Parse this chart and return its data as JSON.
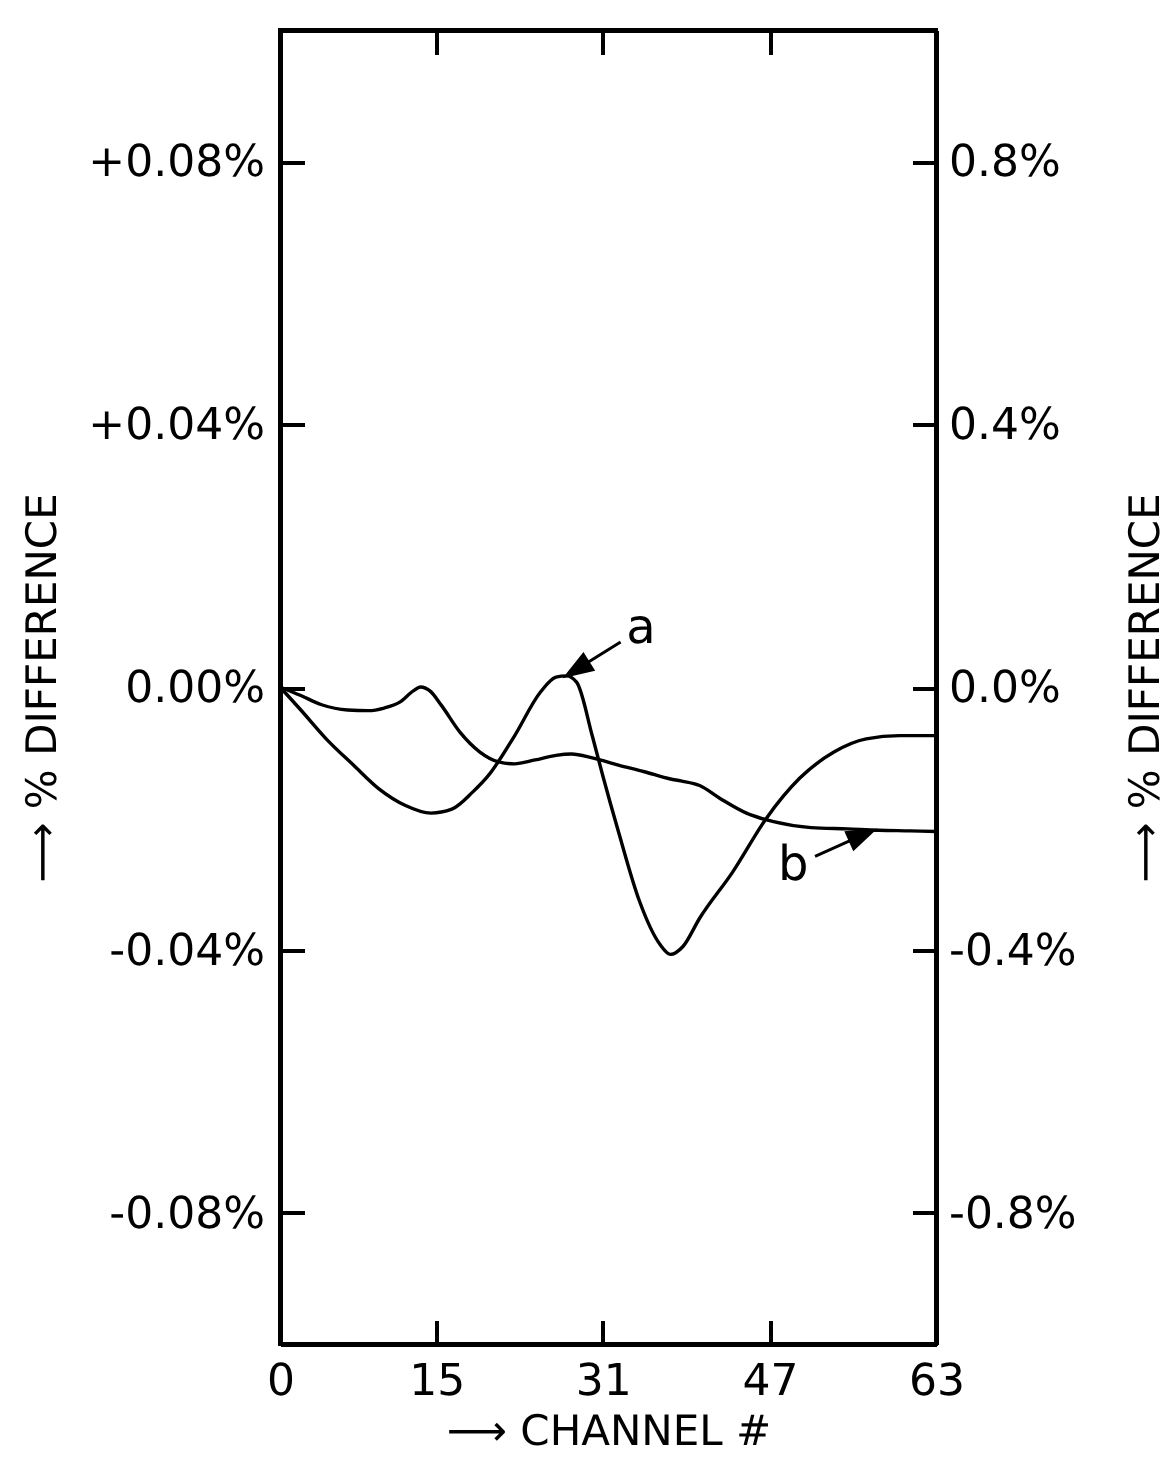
{
  "chart_data": {
    "type": "line",
    "xlabel": "⟶ CHANNEL #",
    "ylabel": "⟶ % DIFFERENCE",
    "y2label": "⟶ % DIFFERENCE",
    "xlim": [
      0,
      63
    ],
    "xticks": [
      0,
      15,
      31,
      47,
      63
    ],
    "ylim": [
      -0.1,
      0.1
    ],
    "yticks": [
      {
        "value": 0.08,
        "label": "+0.08%"
      },
      {
        "value": 0.04,
        "label": "+0.04%"
      },
      {
        "value": 0,
        "label": "0.00%"
      },
      {
        "value": -0.04,
        "label": "-0.04%"
      },
      {
        "value": -0.08,
        "label": "-0.08%"
      }
    ],
    "y2lim": [
      -1,
      1
    ],
    "y2ticks": [
      {
        "value": 0.8,
        "label": "0.8%"
      },
      {
        "value": 0.4,
        "label": "0.4%"
      },
      {
        "value": 0,
        "label": "0.0%"
      },
      {
        "value": -0.4,
        "label": "-0.4%"
      },
      {
        "value": -0.8,
        "label": "-0.8%"
      }
    ],
    "series": [
      {
        "color": "#000000",
        "x": [
          0,
          2,
          4.5,
          7,
          9.5,
          12,
          14.5,
          16.5,
          18.5,
          20,
          22.5,
          25,
          26.5,
          27.5,
          28.5,
          30,
          31,
          32.5,
          34.5,
          36.5,
          37.5,
          38.7,
          40.3,
          43.5,
          46.7,
          49.9,
          53.2,
          56.3,
          59.5,
          63
        ],
        "values": [
          0,
          -0.0035,
          -0.008,
          -0.0118,
          -0.0155,
          -0.018,
          -0.0192,
          -0.0186,
          -0.016,
          -0.0135,
          -0.0075,
          -0.0008,
          0.0015,
          0.0017,
          0.0007,
          -0.0075,
          -0.0135,
          -0.022,
          -0.0325,
          -0.0392,
          -0.0407,
          -0.0395,
          -0.0352,
          -0.0281,
          -0.02,
          -0.0139,
          -0.0099,
          -0.0079,
          -0.0074,
          -0.0074
        ]
      },
      {
        "color": "#000000",
        "x": [
          0,
          2,
          4,
          6.5,
          8.5,
          10,
          11.5,
          12.8,
          13.5,
          14.4,
          15.5,
          17.3,
          19.2,
          21,
          22.5,
          24.5,
          26.5,
          28,
          30,
          32.5,
          35,
          37.5,
          38.5,
          40.3,
          42.3,
          44.8,
          47.4,
          51,
          54.5,
          57.5,
          60.5,
          63
        ],
        "values": [
          0,
          -0.0013,
          -0.0027,
          -0.0035,
          -0.0036,
          -0.0032,
          -0.0023,
          -0.0006,
          0,
          -0.0006,
          -0.0028,
          -0.0069,
          -0.0099,
          -0.0114,
          -0.0117,
          -0.0111,
          -0.0104,
          -0.0102,
          -0.0108,
          -0.0119,
          -0.0129,
          -0.014,
          -0.0143,
          -0.015,
          -0.017,
          -0.0192,
          -0.0205,
          -0.0214,
          -0.0216,
          -0.0218,
          -0.0219,
          -0.022
        ]
      }
    ],
    "annotations": [
      {
        "text": "a",
        "x": 27.5,
        "y": 0.0017
      },
      {
        "text": "b",
        "x": 57,
        "y": -0.0218
      }
    ]
  }
}
